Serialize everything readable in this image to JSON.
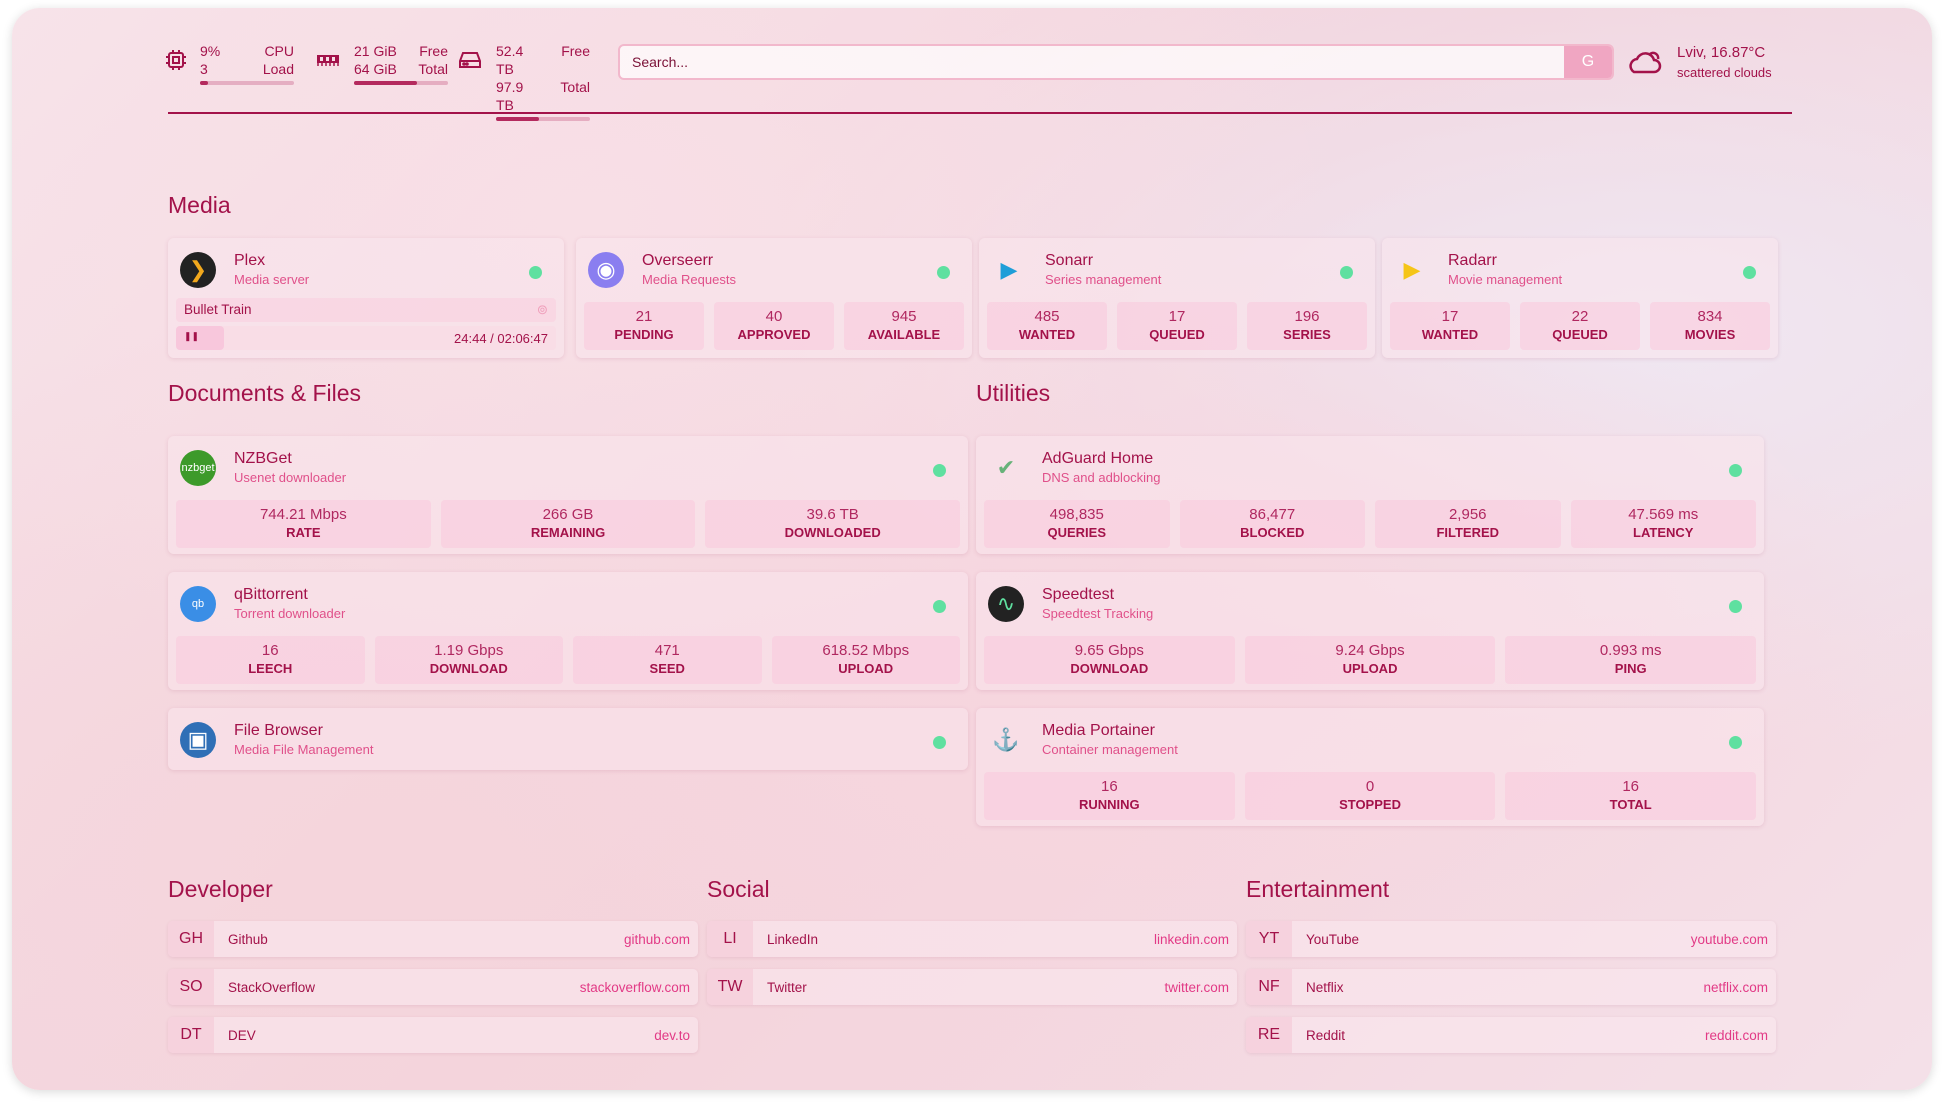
{
  "header": {
    "cpu": {
      "value": "9%",
      "label": "CPU",
      "sub_value": "3",
      "sub_label": "Load",
      "percent": 9
    },
    "memory": {
      "value": "21 GiB",
      "label": "Free",
      "sub_value": "64 GiB",
      "sub_label": "Total",
      "percent": 67
    },
    "disk": {
      "value": "52.4 TB",
      "label": "Free",
      "sub_value": "97.9 TB",
      "sub_label": "Total",
      "percent": 46
    },
    "search": {
      "placeholder": "Search...",
      "button": "G"
    },
    "weather": {
      "location": "Lviv, 16.87°C",
      "condition": "scattered clouds",
      "icon": "cloud-sun-icon"
    }
  },
  "colors": {
    "accent": "#a3124a",
    "status_online": "#5fe0a0",
    "link": "#e23a86"
  },
  "sections": {
    "media": "Media",
    "documents": "Documents & Files",
    "utilities": "Utilities",
    "developer": "Developer",
    "social": "Social",
    "entertainment": "Entertainment"
  },
  "media": [
    {
      "name": "Plex",
      "desc": "Media server",
      "icon": "plex-icon",
      "now_playing": {
        "title": "Bullet Train",
        "time": "24:44 / 02:06:47",
        "state": "paused"
      }
    },
    {
      "name": "Overseerr",
      "desc": "Media Requests",
      "icon": "overseerr-icon",
      "stats": [
        {
          "v": "21",
          "l": "PENDING"
        },
        {
          "v": "40",
          "l": "APPROVED"
        },
        {
          "v": "945",
          "l": "AVAILABLE"
        }
      ]
    },
    {
      "name": "Sonarr",
      "desc": "Series management",
      "icon": "sonarr-icon",
      "stats": [
        {
          "v": "485",
          "l": "WANTED"
        },
        {
          "v": "17",
          "l": "QUEUED"
        },
        {
          "v": "196",
          "l": "SERIES"
        }
      ]
    },
    {
      "name": "Radarr",
      "desc": "Movie management",
      "icon": "radarr-icon",
      "stats": [
        {
          "v": "17",
          "l": "WANTED"
        },
        {
          "v": "22",
          "l": "QUEUED"
        },
        {
          "v": "834",
          "l": "MOVIES"
        }
      ]
    }
  ],
  "documents": [
    {
      "name": "NZBGet",
      "desc": "Usenet downloader",
      "icon": "nzbget-icon",
      "icon_text": "nzbget",
      "stats": [
        {
          "v": "744.21 Mbps",
          "l": "RATE"
        },
        {
          "v": "266 GB",
          "l": "REMAINING"
        },
        {
          "v": "39.6 TB",
          "l": "DOWNLOADED"
        }
      ]
    },
    {
      "name": "qBittorrent",
      "desc": "Torrent downloader",
      "icon": "qbittorrent-icon",
      "icon_text": "qb",
      "stats": [
        {
          "v": "16",
          "l": "LEECH"
        },
        {
          "v": "1.19 Gbps",
          "l": "DOWNLOAD"
        },
        {
          "v": "471",
          "l": "SEED"
        },
        {
          "v": "618.52 Mbps",
          "l": "UPLOAD"
        }
      ]
    },
    {
      "name": "File Browser",
      "desc": "Media File Management",
      "icon": "file-browser-icon"
    }
  ],
  "utilities": [
    {
      "name": "AdGuard Home",
      "desc": "DNS and adblocking",
      "icon": "adguard-icon",
      "stats": [
        {
          "v": "498,835",
          "l": "QUERIES"
        },
        {
          "v": "86,477",
          "l": "BLOCKED"
        },
        {
          "v": "2,956",
          "l": "FILTERED"
        },
        {
          "v": "47.569 ms",
          "l": "LATENCY"
        }
      ]
    },
    {
      "name": "Speedtest",
      "desc": "Speedtest Tracking",
      "icon": "speedtest-icon",
      "stats": [
        {
          "v": "9.65 Gbps",
          "l": "DOWNLOAD"
        },
        {
          "v": "9.24 Gbps",
          "l": "UPLOAD"
        },
        {
          "v": "0.993 ms",
          "l": "PING"
        }
      ]
    },
    {
      "name": "Media Portainer",
      "desc": "Container management",
      "icon": "portainer-icon",
      "stats": [
        {
          "v": "16",
          "l": "RUNNING"
        },
        {
          "v": "0",
          "l": "STOPPED"
        },
        {
          "v": "16",
          "l": "TOTAL"
        }
      ]
    }
  ],
  "bookmarks": {
    "developer": [
      {
        "abbr": "GH",
        "name": "Github",
        "url": "github.com"
      },
      {
        "abbr": "SO",
        "name": "StackOverflow",
        "url": "stackoverflow.com"
      },
      {
        "abbr": "DT",
        "name": "DEV",
        "url": "dev.to"
      }
    ],
    "social": [
      {
        "abbr": "LI",
        "name": "LinkedIn",
        "url": "linkedin.com"
      },
      {
        "abbr": "TW",
        "name": "Twitter",
        "url": "twitter.com"
      }
    ],
    "entertainment": [
      {
        "abbr": "YT",
        "name": "YouTube",
        "url": "youtube.com"
      },
      {
        "abbr": "NF",
        "name": "Netflix",
        "url": "netflix.com"
      },
      {
        "abbr": "RE",
        "name": "Reddit",
        "url": "reddit.com"
      }
    ]
  }
}
